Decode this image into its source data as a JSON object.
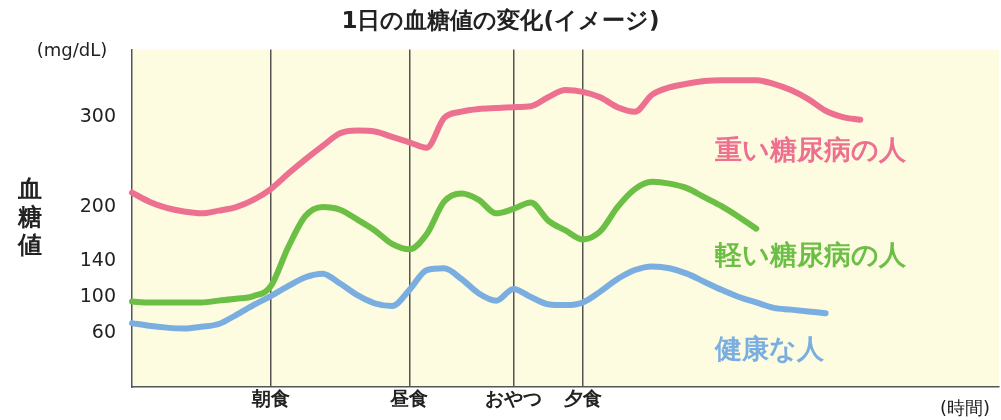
{
  "chart_data": {
    "type": "line",
    "title": "1日の血糖値の変化(イメージ)",
    "ylabel": "血糖値",
    "xlabel": "(時間)",
    "annotations": [
      "(mg/dL)"
    ],
    "categories": [
      null,
      null,
      null,
      null,
      null,
      null,
      null,
      null,
      "朝食",
      null,
      null,
      null,
      null,
      null,
      null,
      null,
      "昼食",
      null,
      null,
      null,
      null,
      null,
      "おやつ",
      null,
      null,
      null,
      "夕食",
      null,
      null,
      null,
      null,
      null,
      null,
      null,
      null,
      null,
      null,
      null,
      null,
      null,
      null,
      null,
      null,
      null,
      null,
      null,
      null,
      null,
      null,
      null,
      null
    ],
    "ylim": [
      0,
      375
    ],
    "yticks": [
      60,
      100,
      140,
      200,
      300
    ],
    "grid": "x",
    "legend": false,
    "marker": "none",
    "line_style": "solid",
    "series": [
      {
        "name": "重い糖尿病の人",
        "color": "#ee7090",
        "values": [
          216,
          206,
          199,
          195,
          193,
          196,
          200,
          208,
          220,
          237,
          253,
          268,
          282,
          285,
          284,
          278,
          272,
          266,
          299,
          306,
          309,
          310,
          311,
          312,
          322,
          330,
          328,
          322,
          311,
          306,
          325,
          333,
          337,
          340,
          341,
          341,
          341,
          337,
          330,
          320,
          307,
          300,
          297,
          null,
          null,
          null,
          null,
          null,
          null,
          null,
          null
        ]
      },
      {
        "name": "軽い糖尿病の人",
        "color": "#6cbf45",
        "values": [
          95,
          94,
          94,
          94,
          94,
          96,
          98,
          101,
          112,
          155,
          190,
          200,
          197,
          186,
          174,
          159,
          153,
          170,
          206,
          215,
          208,
          193,
          198,
          205,
          185,
          174,
          164,
          173,
          200,
          220,
          228,
          226,
          221,
          211,
          201,
          189,
          176,
          null,
          null,
          null,
          null,
          null,
          null,
          null,
          null,
          null,
          null,
          null,
          null,
          null,
          null
        ]
      },
      {
        "name": "健康な人",
        "color": "#7aaee0",
        "values": [
          71,
          68,
          66,
          65,
          67,
          70,
          80,
          91,
          101,
          112,
          122,
          126,
          115,
          102,
          93,
          90,
          108,
          130,
          132,
          120,
          104,
          96,
          109,
          100,
          92,
          91,
          94,
          106,
          120,
          130,
          134,
          132,
          126,
          117,
          108,
          100,
          94,
          88,
          86,
          84,
          82,
          null,
          null,
          null,
          null,
          null,
          null,
          null,
          null,
          null,
          null
        ]
      }
    ]
  }
}
